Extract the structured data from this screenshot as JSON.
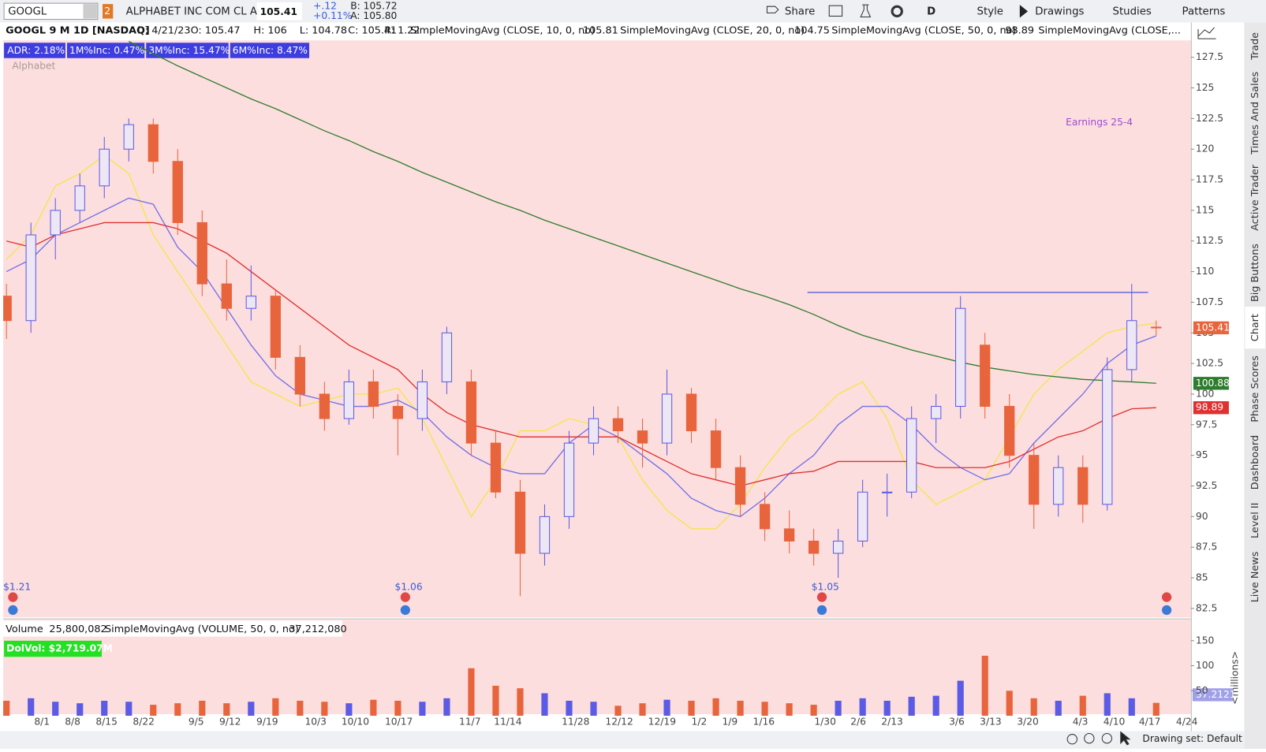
{
  "toolbar": {
    "symbol": "GOOGL",
    "link": "2",
    "name": "ALPHABET INC COM CL A",
    "last": "105.41",
    "change": "+.12",
    "change_pct": "+0.11%",
    "bid": "B: 105.72",
    "ask": "A: 105.80",
    "buttons": [
      "Share",
      "D",
      "Style",
      "Drawings",
      "Studies",
      "Patterns"
    ]
  },
  "info": {
    "title": "GOOGL 9 M 1D [NASDAQ]",
    "date": "D: 4/21/23",
    "open": "O: 105.47",
    "high": "H: 106",
    "low": "L: 104.78",
    "close": "C: 105.41",
    "range": "R: 1.22",
    "studies": [
      "SimpleMovingAvg (CLOSE, 10, 0, no)",
      "SimpleMovingAvg (CLOSE, 20, 0, no)",
      "SimpleMovingAvg (CLOSE, 50, 0, no)",
      "SimpleMovingAvg (CLOSE,..."
    ]
  },
  "badges": [
    "ADR: 2.18%",
    "1M%Inc: 0.47%",
    "3M%Inc: 15.47%",
    "6M%Inc: 8.47%"
  ],
  "watermark": "Alphabet",
  "annotation": "Earnings 25-4",
  "dividends": [
    "$1.21",
    "$1.06",
    "$1.05"
  ],
  "chart_data": [
    {
      "type": "candlestick",
      "up_color": "#5b5be6",
      "down_color": "#e8643c",
      "background": "#fddede",
      "ylim": [
        82.5,
        127.5
      ],
      "yticks": [
        82.5,
        85,
        87.5,
        90,
        92.5,
        95,
        97.5,
        100,
        102.5,
        105,
        107.5,
        110,
        112.5,
        115,
        117.5,
        120,
        122.5,
        125,
        127.5
      ],
      "ohlc": [
        [
          108,
          109,
          104.5,
          106
        ],
        [
          106,
          114,
          105,
          113
        ],
        [
          113,
          116,
          111,
          115
        ],
        [
          115,
          118,
          114,
          117
        ],
        [
          117,
          121,
          116,
          120
        ],
        [
          120,
          122.5,
          119,
          122
        ],
        [
          122,
          122.5,
          118,
          119
        ],
        [
          119,
          120,
          113,
          114
        ],
        [
          114,
          115,
          108,
          109
        ],
        [
          109,
          111,
          106,
          107
        ],
        [
          107,
          110.5,
          106,
          108
        ],
        [
          108,
          108.5,
          102,
          103
        ],
        [
          103,
          104,
          99,
          100
        ],
        [
          100,
          101,
          97,
          98
        ],
        [
          98,
          102,
          97.5,
          101
        ],
        [
          101,
          102,
          98,
          99
        ],
        [
          99,
          100,
          95,
          98
        ],
        [
          98,
          102,
          97,
          101
        ],
        [
          101,
          105.5,
          100,
          105
        ],
        [
          101,
          102,
          95,
          96
        ],
        [
          96,
          97,
          91.5,
          92
        ],
        [
          92,
          93,
          83.5,
          87
        ],
        [
          87,
          91,
          86,
          90
        ],
        [
          90,
          97,
          89,
          96
        ],
        [
          96,
          99,
          95,
          98
        ],
        [
          98,
          99,
          96,
          97
        ],
        [
          97,
          98,
          94,
          96
        ],
        [
          96,
          102,
          95,
          100
        ],
        [
          100,
          100.5,
          96,
          97
        ],
        [
          97,
          98,
          93,
          94
        ],
        [
          94,
          95,
          90,
          91
        ],
        [
          91,
          92,
          88,
          89
        ],
        [
          89,
          90.5,
          87,
          88
        ],
        [
          88,
          89,
          86,
          87
        ],
        [
          87,
          89,
          85,
          88
        ],
        [
          88,
          93,
          87.5,
          92
        ],
        [
          92,
          93.5,
          90,
          92
        ],
        [
          92,
          99,
          91.5,
          98
        ],
        [
          98,
          100,
          96,
          99
        ],
        [
          99,
          108,
          98,
          107
        ],
        [
          104,
          105,
          98,
          99
        ],
        [
          99,
          100,
          94,
          95
        ],
        [
          95,
          96,
          89,
          91
        ],
        [
          91,
          95,
          90,
          94
        ],
        [
          94,
          95,
          89.5,
          91
        ],
        [
          91,
          103,
          90.5,
          102
        ],
        [
          102,
          109,
          101,
          106
        ],
        [
          105.47,
          106,
          104.78,
          105.41
        ]
      ],
      "series": [
        {
          "name": "SMA 10",
          "color": "#f2e64a",
          "values": [
            111,
            113,
            117,
            118,
            119.5,
            118,
            113,
            110,
            107,
            104,
            101,
            100,
            99,
            99.5,
            100,
            100,
            100.5,
            98,
            94,
            90,
            93,
            97,
            97,
            98,
            97.5,
            96.5,
            93,
            90.5,
            89,
            89,
            91,
            94,
            96.5,
            98,
            100,
            101,
            98,
            93,
            91,
            92,
            93,
            96.5,
            100,
            102,
            103.5,
            105,
            105.5,
            105.81
          ]
        },
        {
          "name": "SMA 20",
          "color": "#7070e8",
          "values": [
            110,
            111,
            113,
            114,
            115,
            116,
            115.5,
            112,
            110,
            107,
            104,
            101.5,
            100,
            99.5,
            99,
            99,
            99.5,
            98.5,
            96.5,
            95,
            94,
            93.5,
            93.5,
            96,
            97.5,
            96.5,
            95,
            93.5,
            91.5,
            90.5,
            90,
            91.5,
            93.5,
            95,
            97.5,
            99,
            99,
            97.5,
            95.5,
            94,
            93,
            93.5,
            96,
            98,
            100,
            102.5,
            104,
            104.75
          ]
        },
        {
          "name": "SMA 50",
          "color": "#e03030",
          "values": [
            112.5,
            112,
            113,
            113.5,
            114,
            114,
            114,
            113.5,
            112.5,
            111.5,
            110,
            108.5,
            107,
            105.5,
            104,
            103,
            102,
            100,
            98.5,
            97.5,
            97,
            96.5,
            96.5,
            96.5,
            96.5,
            96.5,
            95.5,
            94.5,
            93.5,
            93,
            92.5,
            93,
            93.5,
            93.7,
            94.5,
            94.5,
            94.5,
            94.5,
            94,
            94,
            94,
            94.5,
            95.5,
            96.5,
            97,
            98,
            98.8,
            98.89
          ]
        },
        {
          "name": "SMA 200",
          "color": "#2e7d2e",
          "values": [
            null,
            null,
            null,
            null,
            null,
            128.8,
            127.8,
            126.8,
            125.9,
            125,
            124.1,
            123.3,
            122.4,
            121.5,
            120.7,
            119.8,
            119,
            118.1,
            117.3,
            116.5,
            115.7,
            115,
            114.2,
            113.5,
            112.8,
            112.1,
            111.4,
            110.7,
            110,
            109.3,
            108.6,
            108,
            107.3,
            106.5,
            105.6,
            104.8,
            104.2,
            103.6,
            103.1,
            102.6,
            102.2,
            101.9,
            101.6,
            101.4,
            101.2,
            101.1,
            101,
            100.88
          ]
        }
      ],
      "hline": {
        "value": 108.3,
        "color": "#6a6ae0"
      }
    },
    {
      "type": "bar",
      "title": "Volume",
      "last": "25,800,082",
      "study": "SimpleMovingAvg (VOLUME, 50, 0, no)",
      "study_value": "37,212,080",
      "dolvol": "DolVol: $2,719.07M",
      "unit": "<millions>",
      "avg_label": "37.2121",
      "ylim": [
        0,
        150
      ],
      "yticks": [
        50,
        100,
        150
      ],
      "values": [
        30,
        35,
        28,
        25,
        30,
        28,
        22,
        25,
        30,
        25,
        28,
        35,
        30,
        28,
        25,
        32,
        30,
        28,
        35,
        95,
        60,
        55,
        45,
        30,
        28,
        20,
        25,
        32,
        30,
        35,
        30,
        28,
        25,
        22,
        30,
        35,
        30,
        38,
        40,
        70,
        120,
        50,
        35,
        30,
        40,
        45,
        35,
        25.8
      ]
    }
  ],
  "xtick_labels": [
    "8/1",
    "8/8",
    "8/15",
    "8/22",
    "9/5",
    "9/12",
    "9/19",
    "10/3",
    "10/10",
    "10/17",
    "11/7",
    "11/14",
    "11/28",
    "12/12",
    "12/19",
    "1/2",
    "1/9",
    "1/16",
    "1/30",
    "2/6",
    "2/13",
    "3/6",
    "3/13",
    "3/20",
    "4/3",
    "4/10",
    "4/17",
    "4/24"
  ],
  "side_tabs": [
    "Trade",
    "Times And Sales",
    "Active Trader",
    "Big Buttons",
    "Chart",
    "Phase Scores",
    "Dashboard",
    "Level II",
    "Live News"
  ],
  "footer": "Drawing set: Default"
}
